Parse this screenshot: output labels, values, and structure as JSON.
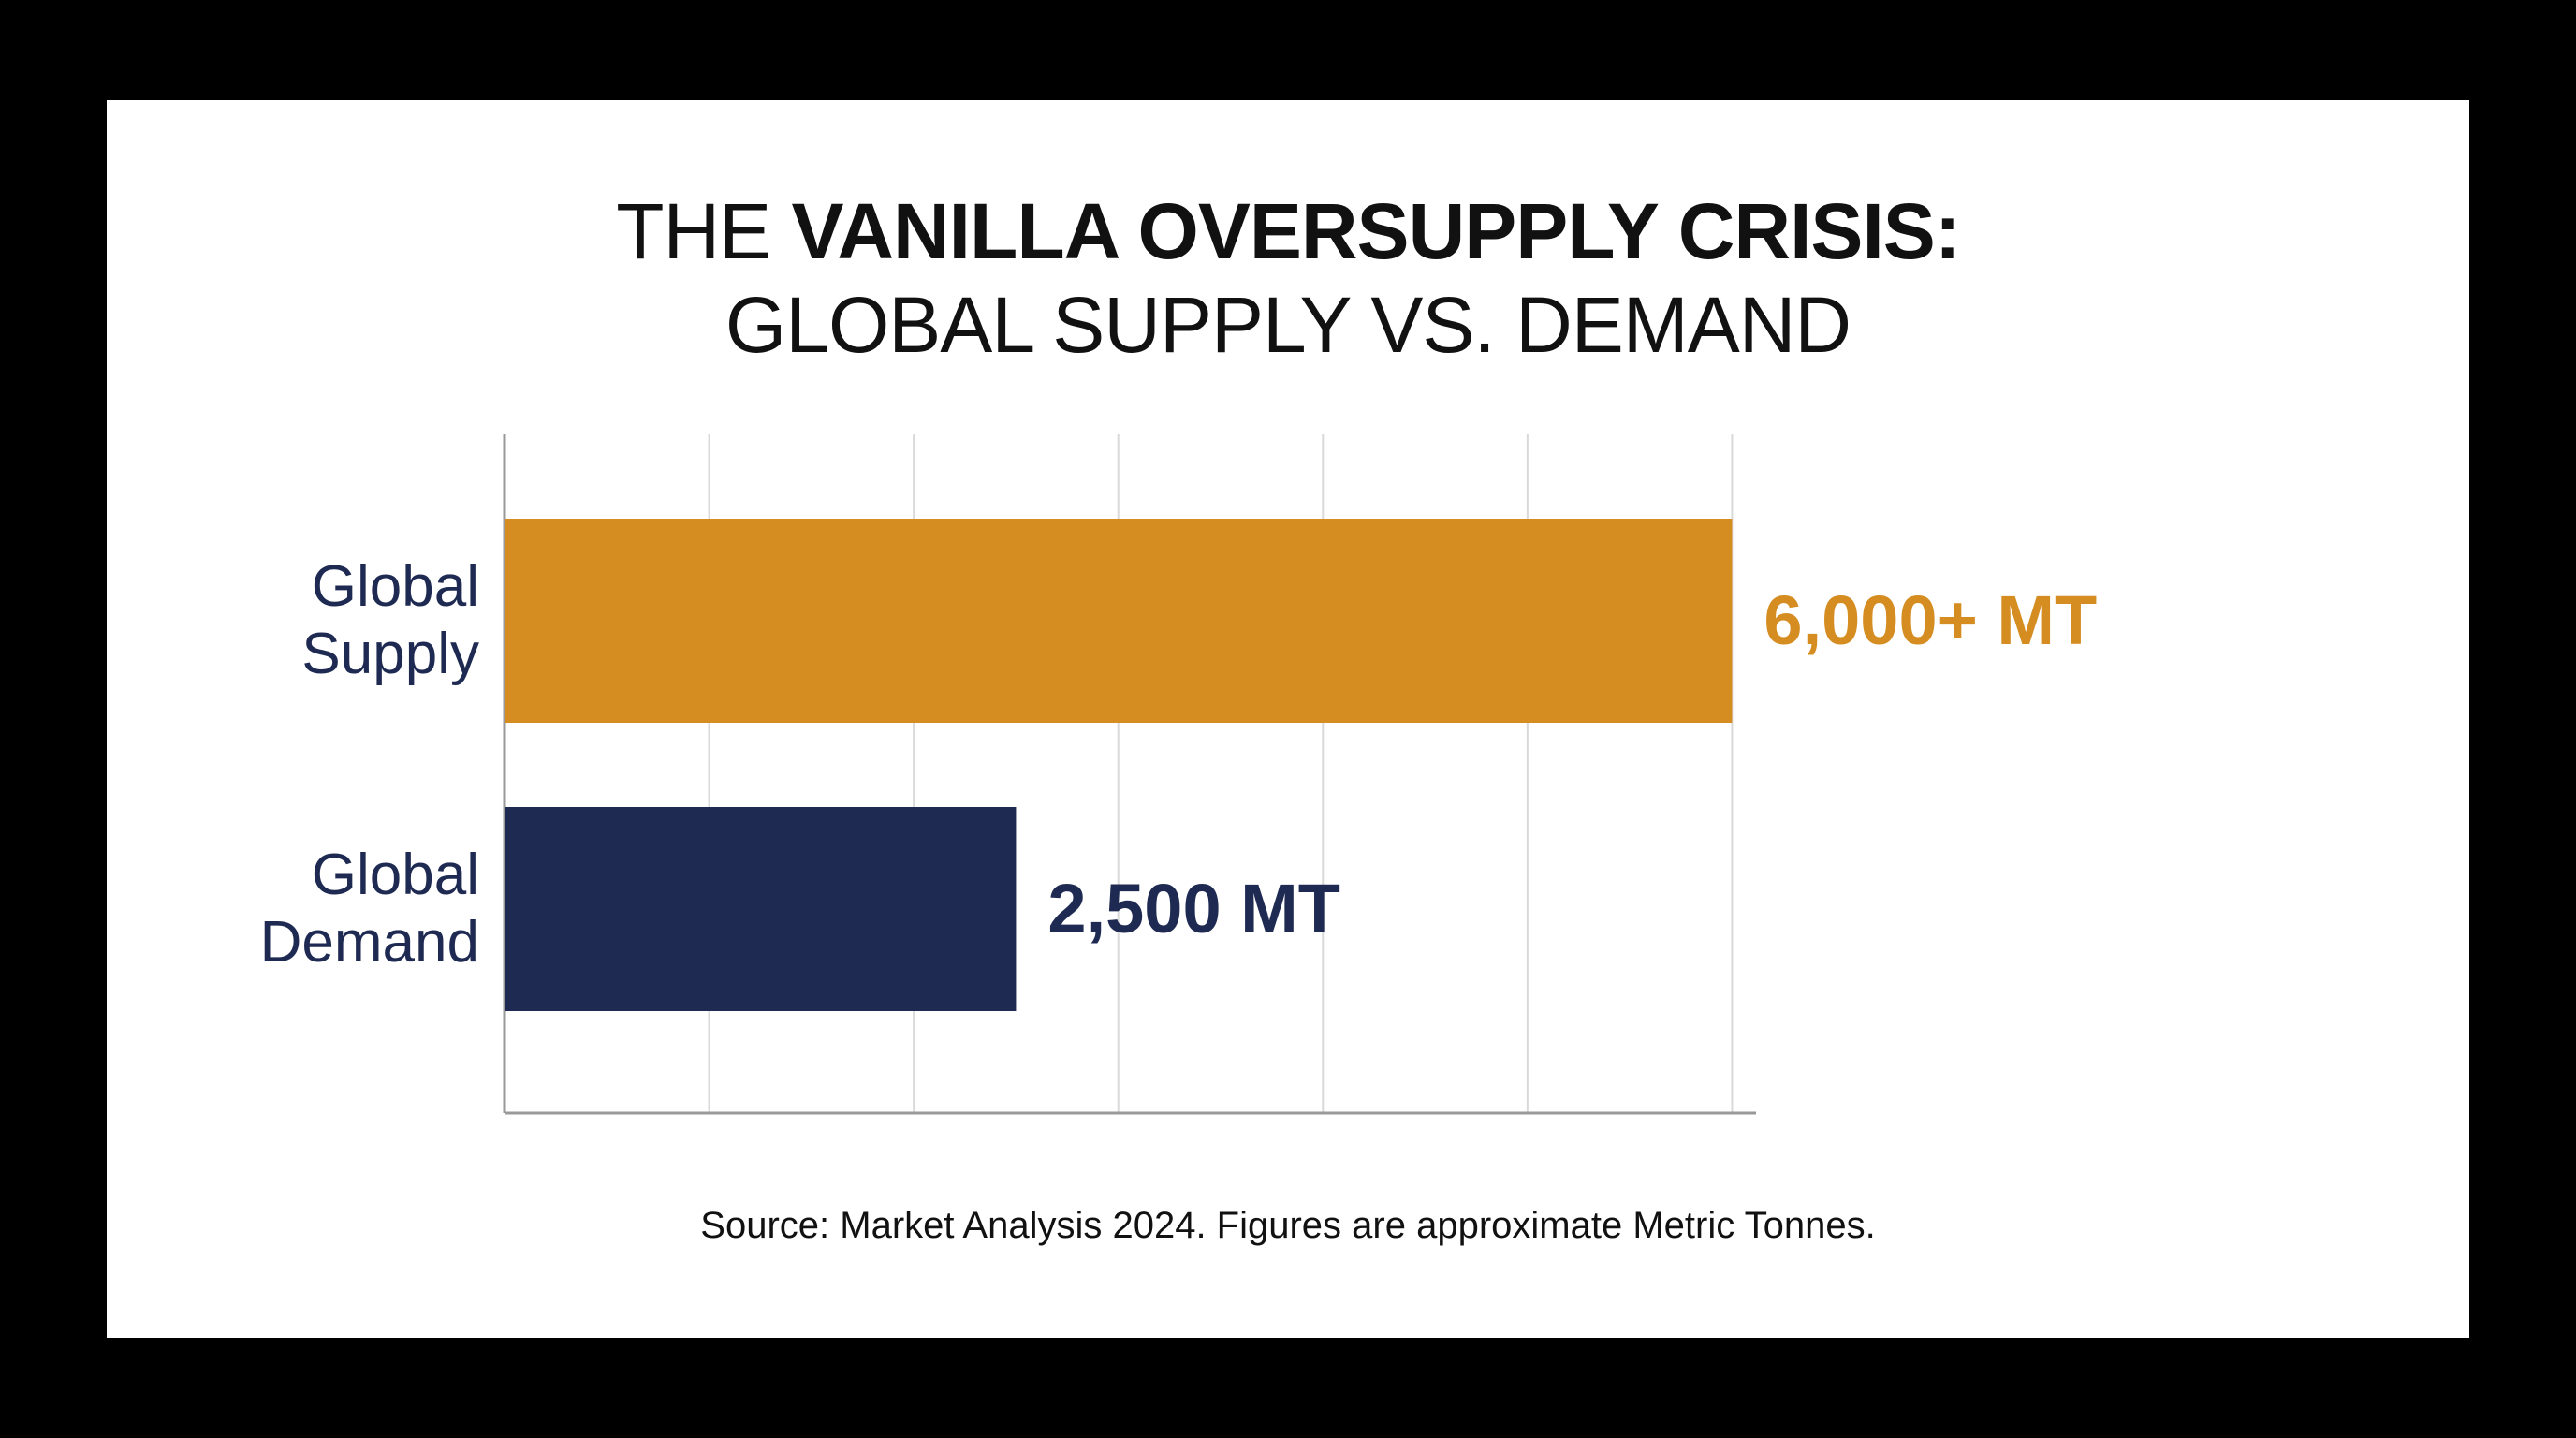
{
  "chart_data": {
    "type": "bar",
    "orientation": "horizontal",
    "title_prefix": "THE",
    "title_bold": "VANILLA OVERSUPPLY CRISIS:",
    "subtitle": "GLOBAL SUPPLY VS. DEMAND",
    "categories": [
      {
        "line1": "Global",
        "line2": "Supply"
      },
      {
        "line1": "Global",
        "line2": "Demand"
      }
    ],
    "values": [
      6000,
      2500
    ],
    "value_labels": [
      "6,000+ MT",
      "2,500 MT"
    ],
    "colors": [
      "#d58c20",
      "#1e2a52"
    ],
    "xlim": [
      0,
      7000
    ],
    "grid": true,
    "source": "Source: Market Analysis 2024. Figures are approximate Metric Tonnes."
  }
}
